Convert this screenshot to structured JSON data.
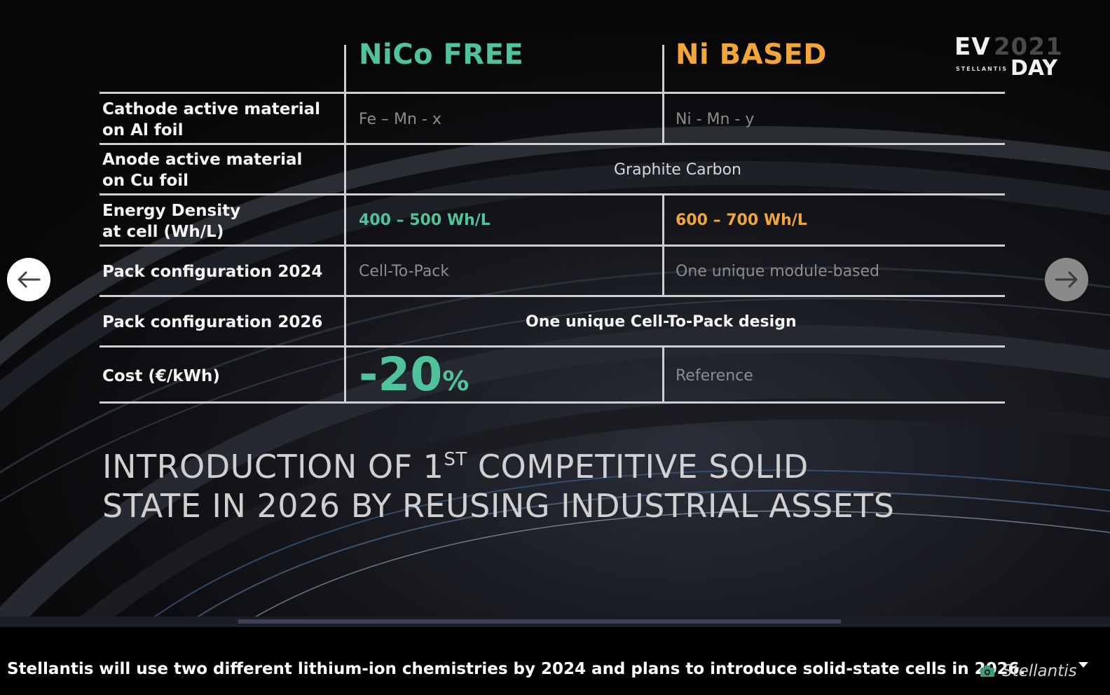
{
  "slide": {
    "logo": {
      "ev": "EV",
      "year": "2021",
      "brand": "STELLANTIS",
      "day": "DAY"
    },
    "columns": {
      "nico_free": "NiCo FREE",
      "ni_based": "Ni BASED"
    },
    "rows": [
      {
        "label": "Cathode active material\non Al foil",
        "nico": "Fe – Mn - x",
        "ni": "Ni - Mn - y"
      },
      {
        "label": "Anode active material\non Cu foil",
        "shared": "Graphite Carbon"
      },
      {
        "label": "Energy Density\nat cell (Wh/L)",
        "nico": "400 – 500 Wh/L",
        "ni": "600 – 700 Wh/L"
      },
      {
        "label": "Pack configuration 2024",
        "nico": "Cell-To-Pack",
        "ni": "One unique module-based"
      },
      {
        "label": "Pack configuration 2026",
        "shared": "One unique Cell-To-Pack design"
      },
      {
        "label": "Cost (€/kWh)",
        "nico_num": "-20",
        "nico_pct": "%",
        "ni": "Reference"
      }
    ],
    "headline": {
      "line1_pre": "INTRODUCTION OF 1",
      "line1_sup": "ST",
      "line1_post": " COMPETITIVE SOLID",
      "line2": "STATE IN 2026 BY REUSING INDUSTRIAL ASSETS"
    }
  },
  "gallery": {
    "prev_icon": "arrow-left-icon",
    "next_icon": "arrow-right-icon",
    "caption": "Stellantis will use two different lithium-ion chemistries by 2024 and plans to introduce solid-state cells in 2026.",
    "credit": "Stellantis",
    "credit_icon": "camera-icon",
    "caret_icon": "caret-down-icon"
  },
  "colors": {
    "nico": "#4fc39b",
    "ni": "#f2a63a",
    "rule": "#cfcfcf"
  }
}
